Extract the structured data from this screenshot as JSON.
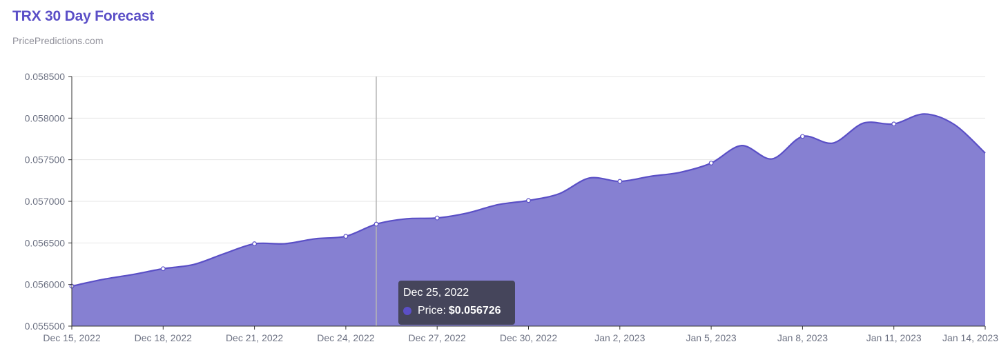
{
  "header": {
    "title": "TRX 30 Day Forecast",
    "subtitle": "PricePredictions.com"
  },
  "colors": {
    "accent": "#5b4fc7",
    "area_fill": "#8680d2",
    "line": "#5a4fc6",
    "grid": "#e6e6e6",
    "crosshair": "#b5b5b5",
    "marker": "#ffffff"
  },
  "tooltip": {
    "date": "Dec 25, 2022",
    "label": "Price:",
    "value": "$0.056726",
    "icon": "series-dot-icon"
  },
  "chart_data": {
    "type": "area",
    "title": "TRX 30 Day Forecast",
    "subtitle": "PricePredictions.com",
    "xlabel": "",
    "ylabel": "",
    "ylim": [
      0.0555,
      0.0585
    ],
    "xlim": [
      "2022-12-15",
      "2023-01-14"
    ],
    "y_ticks": [
      "0.055500",
      "0.056000",
      "0.056500",
      "0.057000",
      "0.057500",
      "0.058000",
      "0.058500"
    ],
    "x_ticks": [
      "Dec 15, 2022",
      "Dec 18, 2022",
      "Dec 21, 2022",
      "Dec 24, 2022",
      "Dec 27, 2022",
      "Dec 30, 2022",
      "Jan 2, 2023",
      "Jan 5, 2023",
      "Jan 8, 2023",
      "Jan 11, 2023",
      "Jan 14, 2023"
    ],
    "grid": true,
    "legend": "none",
    "highlighted_date": "2022-12-25",
    "series": [
      {
        "name": "Price",
        "x": [
          "2022-12-15",
          "2022-12-16",
          "2022-12-17",
          "2022-12-18",
          "2022-12-19",
          "2022-12-20",
          "2022-12-21",
          "2022-12-22",
          "2022-12-23",
          "2022-12-24",
          "2022-12-25",
          "2022-12-26",
          "2022-12-27",
          "2022-12-28",
          "2022-12-29",
          "2022-12-30",
          "2022-12-31",
          "2023-01-01",
          "2023-01-02",
          "2023-01-03",
          "2023-01-04",
          "2023-01-05",
          "2023-01-06",
          "2023-01-07",
          "2023-01-08",
          "2023-01-09",
          "2023-01-10",
          "2023-01-11",
          "2023-01-12",
          "2023-01-13",
          "2023-01-14"
        ],
        "values": [
          0.05598,
          0.05606,
          0.05612,
          0.05619,
          0.05624,
          0.05637,
          0.05649,
          0.05649,
          0.05655,
          0.05658,
          0.056726,
          0.05679,
          0.0568,
          0.05686,
          0.05696,
          0.05701,
          0.05709,
          0.05728,
          0.05724,
          0.0573,
          0.05735,
          0.05746,
          0.05767,
          0.05751,
          0.05778,
          0.0577,
          0.05794,
          0.05793,
          0.05805,
          0.05792,
          0.05758
        ],
        "markers": [
          "2022-12-15",
          "2022-12-18",
          "2022-12-21",
          "2022-12-24",
          "2022-12-25",
          "2022-12-27",
          "2022-12-30",
          "2023-01-02",
          "2023-01-05",
          "2023-01-08",
          "2023-01-11"
        ]
      }
    ]
  }
}
